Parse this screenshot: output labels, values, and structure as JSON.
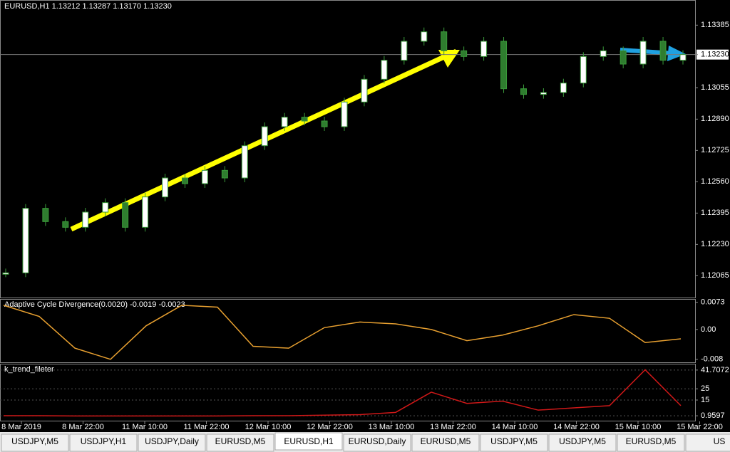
{
  "header": {
    "title": "EURUSD,H1  1.13212 1.13287 1.13170 1.13230"
  },
  "price_panel": {
    "ylim": [
      1.1195,
      1.1351
    ],
    "yticks": [
      1.13385,
      {
        "value": 1.1323,
        "label": "1.13230"
      },
      1.13055,
      {
        "value": 1.1289,
        "label": "1.12890"
      },
      1.12725,
      {
        "value": 1.1256,
        "label": "1.12560"
      },
      1.12395,
      {
        "value": 1.1223,
        "label": "1.12230"
      },
      1.12065
    ],
    "current_tick": 1,
    "closes": [
      1.1208,
      1.1242,
      1.1235,
      1.1232,
      1.124,
      1.1245,
      1.1232,
      1.1248,
      1.1258,
      1.1255,
      1.1262,
      1.1258,
      1.1275,
      1.1285,
      1.129,
      1.1288,
      1.1285,
      1.1298,
      1.131,
      1.132,
      1.133,
      1.1335,
      1.1325,
      1.1322,
      1.133,
      1.1305,
      1.1302,
      1.1303,
      1.1308,
      1.1322,
      1.1325,
      1.1318,
      1.133,
      1.132,
      1.1323
    ]
  },
  "oscillator": {
    "label": "Adaptive Cycle Divergence(0.0020) -0.0019 -0.0023",
    "ylim": [
      -0.0088,
      0.008
    ],
    "yticks": [
      0.0073,
      {
        "value": 0,
        "label": "0.00"
      },
      -0.008
    ],
    "values": [
      0.0065,
      0.0035,
      -0.005,
      -0.008,
      0.001,
      0.0065,
      0.006,
      -0.0045,
      -0.005,
      0.0005,
      0.002,
      0.0015,
      0,
      -0.003,
      -0.0015,
      0.001,
      0.004,
      0.003,
      -0.0035,
      -0.0025
    ]
  },
  "trend": {
    "label": "k_trend_fileter",
    "ylim": [
      -3.4,
      46.7
    ],
    "yticks": [
      41.7072,
      25,
      15,
      0.9597
    ],
    "values": [
      1,
      1,
      0.8,
      0.8,
      0.8,
      0.8,
      0.8,
      1,
      1,
      1.5,
      2,
      4,
      22,
      12,
      14,
      6,
      8,
      10,
      42,
      10
    ]
  },
  "time_labels": [
    "8 Mar 2019",
    "8 Mar 22:00",
    "11 Mar 10:00",
    "11 Mar 22:00",
    "12 Mar 10:00",
    "12 Mar 22:00",
    "13 Mar 10:00",
    "13 Mar 22:00",
    "14 Mar 10:00",
    "14 Mar 22:00",
    "15 Mar 10:00",
    "15 Mar 22:00"
  ],
  "tabs": [
    "USDJPY,M5",
    "USDJPY,H1",
    "USDJPY,Daily",
    "EURUSD,M5",
    "EURUSD,H1",
    "EURUSD,Daily",
    "EURUSD,M5",
    "USDJPY,M5",
    "USDJPY,M5",
    "EURUSD,M5",
    "US"
  ]
}
